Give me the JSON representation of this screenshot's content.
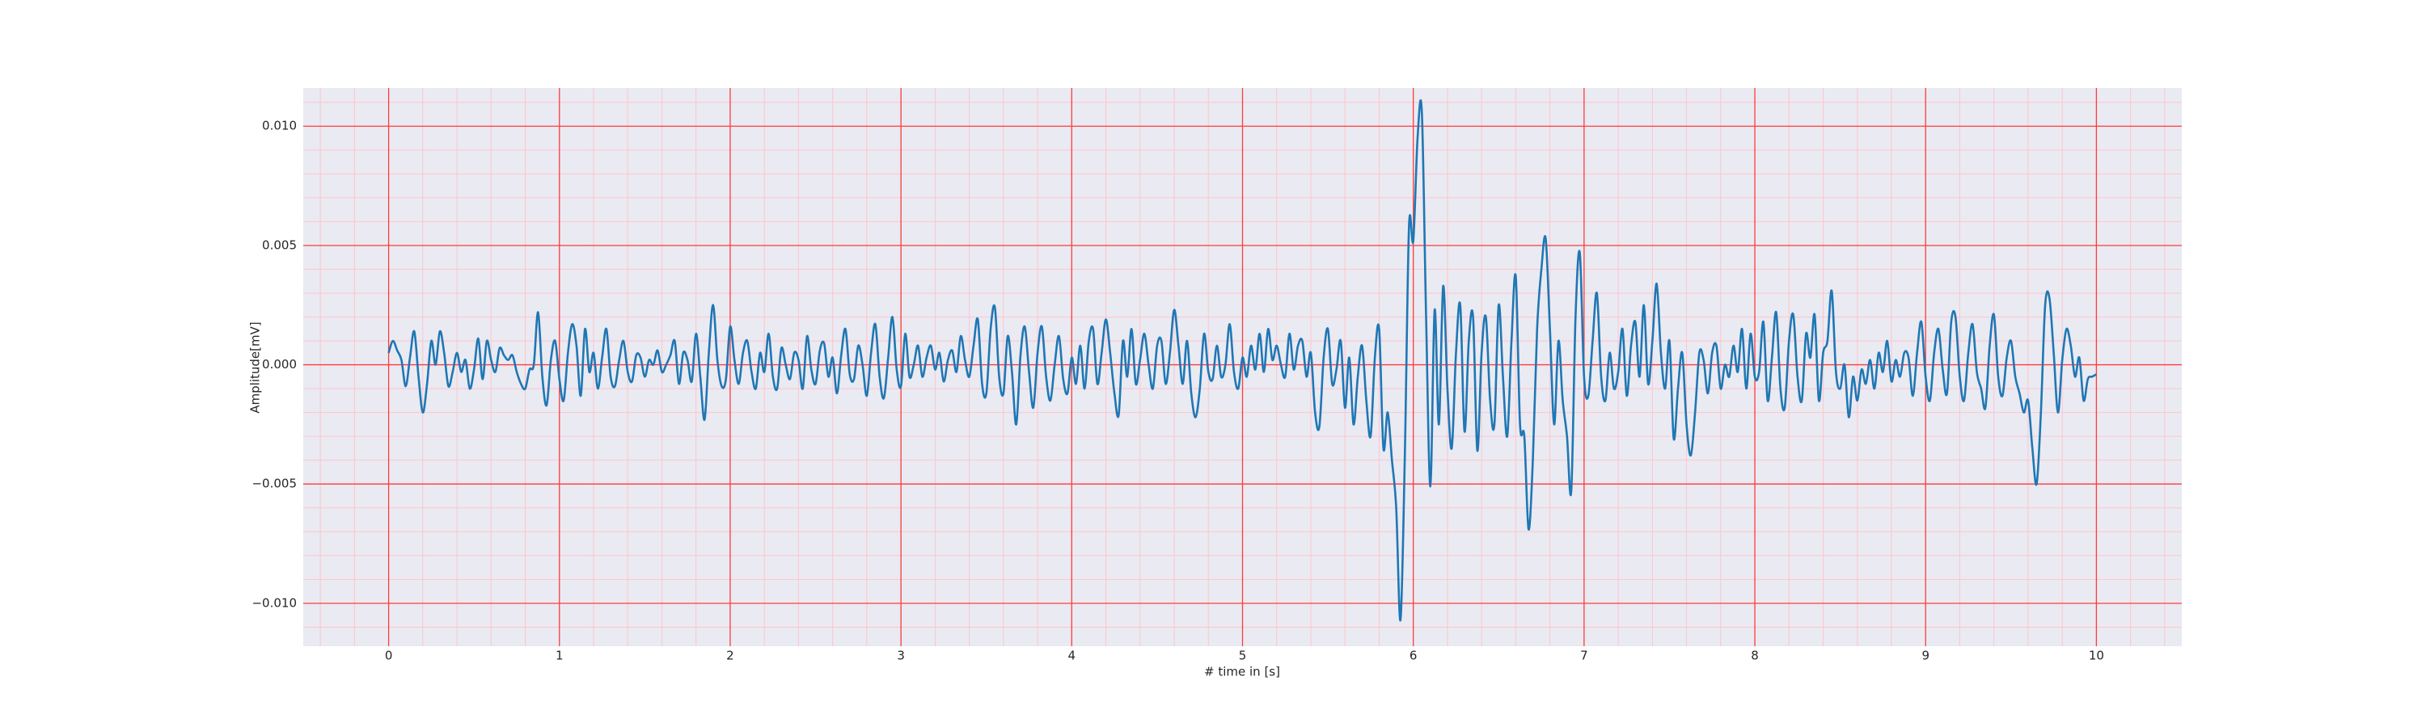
{
  "chart_data": {
    "type": "line",
    "xlabel": "# time in [s]",
    "ylabel": "Amplitude[mV]",
    "color": "#1f77b4",
    "background": "#eaeaf2",
    "grid": true,
    "grid_color": "#ff3b3b",
    "minor_grid": true,
    "minor_grid_color": "#ffc4cc",
    "minor_divisions": 5,
    "xlim": [
      -0.5,
      10.5
    ],
    "ylim": [
      -0.0118,
      0.0116
    ],
    "xticks": [
      0,
      1,
      2,
      3,
      4,
      5,
      6,
      7,
      8,
      9,
      10
    ],
    "yticks": [
      {
        "value": -0.01,
        "label": "−0.010"
      },
      {
        "value": -0.005,
        "label": "−0.005"
      },
      {
        "value": 0,
        "label": "0.000"
      },
      {
        "value": 0.005,
        "label": "0.005"
      },
      {
        "value": 0.01,
        "label": "0.010"
      }
    ],
    "x": [
      0,
      0.025,
      0.05,
      0.075,
      0.1,
      0.125,
      0.15,
      0.175,
      0.2,
      0.225,
      0.25,
      0.275,
      0.3,
      0.325,
      0.35,
      0.375,
      0.4,
      0.425,
      0.45,
      0.475,
      0.5,
      0.525,
      0.55,
      0.575,
      0.6,
      0.625,
      0.65,
      0.675,
      0.7,
      0.725,
      0.75,
      0.775,
      0.8,
      0.825,
      0.85,
      0.875,
      0.9,
      0.925,
      0.95,
      0.975,
      1,
      1.025,
      1.05,
      1.075,
      1.1,
      1.125,
      1.15,
      1.175,
      1.2,
      1.225,
      1.25,
      1.275,
      1.3,
      1.325,
      1.35,
      1.375,
      1.4,
      1.425,
      1.45,
      1.475,
      1.5,
      1.525,
      1.55,
      1.575,
      1.6,
      1.625,
      1.65,
      1.675,
      1.7,
      1.725,
      1.75,
      1.775,
      1.8,
      1.825,
      1.85,
      1.875,
      1.9,
      1.925,
      1.95,
      1.975,
      2,
      2.025,
      2.05,
      2.075,
      2.1,
      2.125,
      2.15,
      2.175,
      2.2,
      2.225,
      2.25,
      2.275,
      2.3,
      2.325,
      2.35,
      2.375,
      2.4,
      2.425,
      2.45,
      2.475,
      2.5,
      2.525,
      2.55,
      2.575,
      2.6,
      2.625,
      2.65,
      2.675,
      2.7,
      2.725,
      2.75,
      2.775,
      2.8,
      2.825,
      2.85,
      2.875,
      2.9,
      2.925,
      2.95,
      2.975,
      3,
      3.025,
      3.05,
      3.075,
      3.1,
      3.125,
      3.15,
      3.175,
      3.2,
      3.225,
      3.25,
      3.275,
      3.3,
      3.325,
      3.35,
      3.375,
      3.4,
      3.425,
      3.45,
      3.475,
      3.5,
      3.525,
      3.55,
      3.575,
      3.6,
      3.625,
      3.65,
      3.675,
      3.7,
      3.725,
      3.75,
      3.775,
      3.8,
      3.825,
      3.85,
      3.875,
      3.9,
      3.925,
      3.95,
      3.975,
      4,
      4.025,
      4.05,
      4.075,
      4.1,
      4.125,
      4.15,
      4.175,
      4.2,
      4.225,
      4.25,
      4.275,
      4.3,
      4.325,
      4.35,
      4.375,
      4.4,
      4.425,
      4.45,
      4.475,
      4.5,
      4.525,
      4.55,
      4.575,
      4.6,
      4.625,
      4.65,
      4.675,
      4.7,
      4.725,
      4.75,
      4.775,
      4.8,
      4.825,
      4.85,
      4.875,
      4.9,
      4.925,
      4.95,
      4.975,
      5,
      5.025,
      5.05,
      5.075,
      5.1,
      5.125,
      5.15,
      5.175,
      5.2,
      5.225,
      5.25,
      5.275,
      5.3,
      5.325,
      5.35,
      5.375,
      5.4,
      5.425,
      5.45,
      5.475,
      5.5,
      5.525,
      5.55,
      5.575,
      5.6,
      5.625,
      5.65,
      5.675,
      5.7,
      5.725,
      5.75,
      5.775,
      5.8,
      5.825,
      5.85,
      5.875,
      5.9,
      5.925,
      5.95,
      5.975,
      6,
      6.025,
      6.05,
      6.075,
      6.1,
      6.125,
      6.15,
      6.175,
      6.2,
      6.225,
      6.25,
      6.275,
      6.3,
      6.325,
      6.35,
      6.375,
      6.4,
      6.425,
      6.45,
      6.475,
      6.5,
      6.525,
      6.55,
      6.575,
      6.6,
      6.625,
      6.65,
      6.675,
      6.7,
      6.725,
      6.75,
      6.775,
      6.8,
      6.825,
      6.85,
      6.875,
      6.9,
      6.925,
      6.95,
      6.975,
      7,
      7.025,
      7.05,
      7.075,
      7.1,
      7.125,
      7.15,
      7.175,
      7.2,
      7.225,
      7.25,
      7.275,
      7.3,
      7.325,
      7.35,
      7.375,
      7.4,
      7.425,
      7.45,
      7.475,
      7.5,
      7.525,
      7.55,
      7.575,
      7.6,
      7.625,
      7.65,
      7.675,
      7.7,
      7.725,
      7.75,
      7.775,
      7.8,
      7.825,
      7.85,
      7.875,
      7.9,
      7.925,
      7.95,
      7.975,
      8,
      8.025,
      8.05,
      8.075,
      8.1,
      8.125,
      8.15,
      8.175,
      8.2,
      8.225,
      8.25,
      8.275,
      8.3,
      8.325,
      8.35,
      8.375,
      8.4,
      8.425,
      8.45,
      8.475,
      8.5,
      8.525,
      8.55,
      8.575,
      8.6,
      8.625,
      8.65,
      8.675,
      8.7,
      8.725,
      8.75,
      8.775,
      8.8,
      8.825,
      8.85,
      8.875,
      8.9,
      8.925,
      8.95,
      8.975,
      9,
      9.025,
      9.05,
      9.075,
      9.1,
      9.125,
      9.15,
      9.175,
      9.2,
      9.225,
      9.25,
      9.275,
      9.3,
      9.325,
      9.35,
      9.375,
      9.4,
      9.425,
      9.45,
      9.475,
      9.5,
      9.525,
      9.55,
      9.575,
      9.6,
      9.625,
      9.65,
      9.675,
      9.7,
      9.725,
      9.75,
      9.775,
      9.8,
      9.825,
      9.85,
      9.875,
      9.9,
      9.925,
      9.95,
      9.975,
      10
    ],
    "values": [
      0.0005,
      0.001,
      0.0006,
      0.0002,
      -0.0009,
      0.0003,
      0.0014,
      -0.0005,
      -0.002,
      -0.0008,
      0.001,
      0,
      0.0014,
      0.0005,
      -0.0009,
      -0.0003,
      0.0005,
      -0.0003,
      0.0002,
      -0.001,
      -0.0002,
      0.0011,
      -0.0006,
      0.001,
      0.0002,
      -0.0003,
      0.0007,
      0.0004,
      0.0002,
      0.0004,
      -0.0003,
      -0.0008,
      -0.001,
      -0.0002,
      0,
      0.0022,
      -0.0005,
      -0.0017,
      0.0002,
      0.001,
      -0.0006,
      -0.0015,
      0.0005,
      0.0017,
      0.0008,
      -0.0013,
      0.0015,
      -0.0003,
      0.0005,
      -0.001,
      0.0003,
      0.0015,
      -0.0005,
      -0.0009,
      0.0002,
      0.001,
      -0.0003,
      -0.0007,
      0.0004,
      0.0003,
      -0.0005,
      0.0002,
      0,
      0.0006,
      -0.0003,
      0,
      0.0004,
      0.001,
      -0.0008,
      0.0005,
      0.0002,
      -0.0007,
      0.0013,
      -0.0005,
      -0.0023,
      0.0005,
      0.0025,
      0.0002,
      -0.0009,
      -0.0006,
      0.0016,
      0.0002,
      -0.0008,
      0.0005,
      0.001,
      -0.0003,
      -0.001,
      0.0005,
      -0.0003,
      0.0013,
      -0.0005,
      -0.001,
      0.0007,
      0,
      -0.0006,
      0.0005,
      0.0002,
      -0.001,
      0.0012,
      -0.0002,
      -0.0008,
      0.0006,
      0.0009,
      -0.0005,
      0.0003,
      -0.0012,
      0.0004,
      0.0015,
      -0.0004,
      -0.0006,
      0.0008,
      0,
      -0.0013,
      0.0005,
      0.0017,
      -0.0005,
      -0.0014,
      0.0003,
      0.002,
      -0.0002,
      -0.0009,
      0.0013,
      -0.0005,
      0,
      0.0008,
      -0.0005,
      0.0003,
      0.0008,
      -0.0002,
      0.0005,
      -0.0007,
      0.0002,
      0.0006,
      -0.0003,
      0.0012,
      0.0002,
      -0.0005,
      0.0008,
      0.0019,
      -0.0008,
      -0.0012,
      0.0015,
      0.0024,
      -0.0005,
      -0.0012,
      0.0012,
      -0.0003,
      -0.0025,
      0.0004,
      0.0016,
      -0.0003,
      -0.0018,
      0.0005,
      0.0016,
      -0.0005,
      -0.0015,
      0,
      0.0012,
      -0.0006,
      -0.0012,
      0.0003,
      -0.0008,
      0.0008,
      -0.001,
      0.001,
      0.0015,
      -0.0008,
      0.0005,
      0.0019,
      0.0005,
      -0.0012,
      -0.0021,
      0.001,
      -0.0005,
      0.0015,
      -0.0008,
      0.0002,
      0.0013,
      0,
      -0.001,
      0.0008,
      0.001,
      -0.0008,
      0.0005,
      0.0023,
      0.0008,
      -0.0008,
      0.001,
      -0.0012,
      -0.0022,
      -0.001,
      0.0013,
      -0.0003,
      -0.0006,
      0.0008,
      -0.0005,
      0,
      0.0017,
      -0.0003,
      -0.001,
      0.0003,
      -0.0005,
      0.0008,
      -0.0002,
      0.0013,
      -0.0003,
      0.0015,
      0.0002,
      0.0008,
      0,
      -0.0005,
      0.0013,
      -0.0002,
      0.0008,
      0.001,
      -0.0005,
      0.0005,
      -0.002,
      -0.0026,
      0.0003,
      0.0015,
      -0.0008,
      -0.0002,
      0.001,
      -0.0018,
      0.0003,
      -0.0025,
      -0.0005,
      0.0008,
      -0.0015,
      -0.003,
      0.0003,
      0.0015,
      -0.0035,
      -0.002,
      -0.004,
      -0.006,
      -0.0107,
      -0.004,
      0.0058,
      0.0052,
      0.0095,
      0.0106,
      0.002,
      -0.0051,
      0.0023,
      -0.0025,
      0.0033,
      -0.001,
      -0.0035,
      0.0005,
      0.0025,
      -0.0028,
      0.001,
      0.002,
      -0.0036,
      0.0005,
      0.002,
      -0.0015,
      -0.0025,
      0.0025,
      -0.0005,
      -0.003,
      0.001,
      0.0037,
      -0.0025,
      -0.003,
      -0.0069,
      -0.004,
      0.0015,
      0.004,
      0.0053,
      0.0015,
      -0.0025,
      0.001,
      -0.0015,
      -0.003,
      -0.0053,
      0.002,
      0.0047,
      -0.0005,
      -0.0013,
      0.001,
      0.003,
      -0.0005,
      -0.0015,
      0.0005,
      -0.001,
      -0.0003,
      0.0015,
      -0.0013,
      0.0008,
      0.0018,
      -0.0005,
      0.0025,
      -0.0008,
      0.001,
      0.0034,
      0.0005,
      -0.001,
      0.001,
      -0.0031,
      -0.001,
      0.0005,
      -0.0025,
      -0.0038,
      -0.002,
      0.0005,
      0.0002,
      -0.0012,
      0.0005,
      0.0008,
      -0.001,
      0,
      -0.0005,
      0.0008,
      -0.0003,
      0.0015,
      -0.001,
      0.0013,
      -0.0005,
      -0.0003,
      0.0018,
      -0.0015,
      0.0003,
      0.0022,
      -0.001,
      -0.0018,
      0.001,
      0.0021,
      -0.0005,
      -0.0015,
      0.0013,
      0.0003,
      0.0021,
      -0.0015,
      0.0005,
      0.001,
      0.0031,
      -0.0003,
      -0.001,
      0,
      -0.0022,
      -0.0005,
      -0.0015,
      -0.0002,
      -0.0008,
      0.0002,
      -0.001,
      0.0005,
      -0.0003,
      0.001,
      -0.0007,
      0.0002,
      -0.0005,
      0.0005,
      0.0003,
      -0.0013,
      0.0005,
      0.0018,
      -0.0005,
      -0.0015,
      0.0005,
      0.0015,
      -0.0002,
      -0.0012,
      0.0018,
      0.002,
      -0.0005,
      -0.0015,
      0.0005,
      0.0017,
      -0.0003,
      -0.001,
      -0.0018,
      0.0008,
      0.0021,
      -0.0005,
      -0.0013,
      0.0003,
      0.001,
      -0.0005,
      -0.0012,
      -0.002,
      -0.0015,
      -0.0035,
      -0.005,
      -0.002,
      0.0025,
      0.0028,
      0.0005,
      -0.002,
      0.0002,
      0.0015,
      0.0008,
      -0.0005,
      0.0003,
      -0.0015,
      -0.0006,
      -0.0005,
      -0.0004
    ]
  }
}
